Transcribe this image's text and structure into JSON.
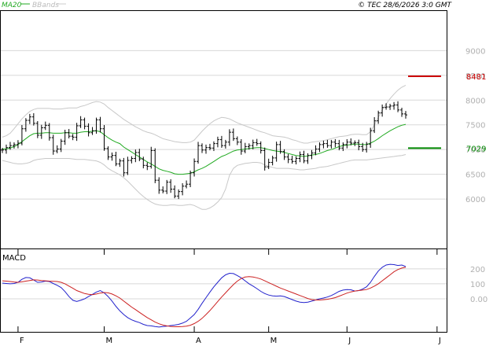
{
  "chart_data": [
    {
      "type": "ohlc",
      "legend": [
        {
          "label": "MA20",
          "color": "#22aa22"
        },
        {
          "label": "BBands",
          "color": "#c0c0c0"
        }
      ],
      "copyright": "© TEC 28/6/2026 3:0 GMT",
      "ylim": [
        5000,
        9800
      ],
      "y_ticks": [
        {
          "label": "9000",
          "value": 9000
        },
        {
          "label": "8500",
          "value": 8500
        },
        {
          "label": "8000",
          "value": 8000
        },
        {
          "label": "7500",
          "value": 7500
        },
        {
          "label": "7000",
          "value": 7000
        },
        {
          "label": "6500",
          "value": 6500
        },
        {
          "label": "6000",
          "value": 6000
        }
      ],
      "x_ticks": [
        {
          "label": "F",
          "index": 4
        },
        {
          "label": "M",
          "index": 26
        },
        {
          "label": "A",
          "index": 49
        },
        {
          "label": "M",
          "index": 68
        },
        {
          "label": "J",
          "index": 88
        },
        {
          "label": "J",
          "index": 111
        }
      ],
      "markers": [
        {
          "label": "8481",
          "value": 8481,
          "color": "#cc0000"
        },
        {
          "label": "7029",
          "value": 7029,
          "color": "#008800"
        }
      ],
      "closes": [
        6990,
        7040,
        7080,
        7100,
        7130,
        7420,
        7590,
        7660,
        7530,
        7290,
        7440,
        7490,
        7240,
        6970,
        7010,
        7170,
        7340,
        7270,
        7250,
        7480,
        7600,
        7470,
        7340,
        7380,
        7600,
        7420,
        7020,
        6850,
        6880,
        6710,
        6770,
        6530,
        6780,
        6820,
        6940,
        6810,
        6680,
        6660,
        6980,
        6380,
        6180,
        6160,
        6340,
        6200,
        6060,
        6150,
        6260,
        6300,
        6530,
        6760,
        7080,
        6990,
        7040,
        7030,
        7120,
        7200,
        7080,
        7150,
        7350,
        7220,
        7150,
        6970,
        7060,
        7080,
        7140,
        7120,
        6980,
        6650,
        6740,
        6830,
        7100,
        6960,
        6850,
        6800,
        6760,
        6820,
        6900,
        6770,
        6880,
        6930,
        7010,
        7100,
        7120,
        7080,
        7150,
        7120,
        7030,
        7100,
        7150,
        7130,
        7140,
        7060,
        7000,
        7110,
        7380,
        7580,
        7740,
        7850,
        7860,
        7880,
        7900,
        7800,
        7720,
        7700
      ],
      "ma20": [
        7010,
        7015,
        7030,
        7060,
        7100,
        7160,
        7220,
        7280,
        7320,
        7330,
        7330,
        7340,
        7340,
        7330,
        7330,
        7330,
        7340,
        7340,
        7330,
        7330,
        7350,
        7360,
        7360,
        7370,
        7380,
        7360,
        7300,
        7240,
        7190,
        7150,
        7120,
        7050,
        7000,
        6950,
        6900,
        6850,
        6800,
        6750,
        6710,
        6660,
        6610,
        6580,
        6560,
        6540,
        6510,
        6500,
        6500,
        6510,
        6520,
        6550,
        6590,
        6620,
        6660,
        6710,
        6760,
        6810,
        6860,
        6890,
        6930,
        6970,
        6990,
        7000,
        7010,
        7020,
        7030,
        7040,
        7040,
        7020,
        7000,
        6980,
        6970,
        6960,
        6940,
        6920,
        6900,
        6880,
        6870,
        6860,
        6870,
        6890,
        6900,
        6920,
        6950,
        6980,
        7000,
        7030,
        7060,
        7080,
        7090,
        7100,
        7110,
        7110,
        7100,
        7100,
        7130,
        7170,
        7220,
        7280,
        7330,
        7380,
        7420,
        7460,
        7490,
        7510
      ],
      "bb_upper": [
        7250,
        7280,
        7330,
        7420,
        7520,
        7620,
        7700,
        7770,
        7810,
        7830,
        7830,
        7830,
        7830,
        7820,
        7820,
        7820,
        7830,
        7840,
        7840,
        7840,
        7870,
        7890,
        7920,
        7950,
        7970,
        7960,
        7920,
        7850,
        7790,
        7730,
        7670,
        7610,
        7560,
        7510,
        7460,
        7420,
        7380,
        7350,
        7330,
        7300,
        7260,
        7220,
        7200,
        7180,
        7160,
        7150,
        7140,
        7140,
        7150,
        7190,
        7280,
        7370,
        7450,
        7520,
        7580,
        7620,
        7650,
        7640,
        7620,
        7580,
        7540,
        7510,
        7480,
        7450,
        7420,
        7390,
        7360,
        7340,
        7310,
        7280,
        7270,
        7260,
        7250,
        7230,
        7200,
        7180,
        7150,
        7130,
        7130,
        7150,
        7160,
        7170,
        7180,
        7200,
        7220,
        7240,
        7260,
        7270,
        7280,
        7300,
        7310,
        7310,
        7300,
        7300,
        7360,
        7500,
        7650,
        7800,
        7920,
        8030,
        8120,
        8200,
        8260,
        8300
      ],
      "bb_lower": [
        6780,
        6760,
        6740,
        6720,
        6710,
        6710,
        6720,
        6740,
        6780,
        6800,
        6810,
        6820,
        6820,
        6820,
        6820,
        6820,
        6820,
        6820,
        6810,
        6800,
        6800,
        6800,
        6790,
        6780,
        6770,
        6740,
        6690,
        6620,
        6570,
        6530,
        6490,
        6430,
        6360,
        6280,
        6200,
        6120,
        6050,
        5990,
        5940,
        5900,
        5880,
        5870,
        5870,
        5880,
        5880,
        5870,
        5870,
        5880,
        5890,
        5870,
        5830,
        5790,
        5790,
        5820,
        5870,
        5940,
        6030,
        6200,
        6480,
        6620,
        6680,
        6700,
        6720,
        6730,
        6740,
        6740,
        6730,
        6690,
        6660,
        6640,
        6620,
        6620,
        6620,
        6620,
        6610,
        6600,
        6590,
        6590,
        6600,
        6610,
        6620,
        6640,
        6650,
        6660,
        6680,
        6700,
        6720,
        6740,
        6760,
        6780,
        6790,
        6790,
        6790,
        6790,
        6800,
        6810,
        6820,
        6830,
        6840,
        6850,
        6860,
        6870,
        6880,
        6900
      ]
    },
    {
      "type": "line",
      "title": "MACD",
      "ylim": [
        -220,
        330
      ],
      "y_ticks": [
        {
          "label": "200",
          "value": 200
        },
        {
          "label": "100",
          "value": 100
        },
        {
          "label": "0.00",
          "value": 0
        }
      ],
      "series": [
        {
          "color": "#2222cc",
          "values": [
            105,
            102,
            100,
            102,
            110,
            130,
            142,
            140,
            125,
            110,
            112,
            118,
            115,
            102,
            90,
            75,
            48,
            15,
            -10,
            -18,
            -10,
            0,
            15,
            30,
            45,
            55,
            40,
            15,
            -15,
            -50,
            -80,
            -105,
            -125,
            -140,
            -150,
            -158,
            -170,
            -178,
            -180,
            -185,
            -188,
            -185,
            -182,
            -178,
            -175,
            -170,
            -162,
            -150,
            -128,
            -105,
            -70,
            -30,
            8,
            45,
            80,
            110,
            140,
            160,
            170,
            168,
            155,
            140,
            120,
            100,
            85,
            68,
            50,
            35,
            25,
            20,
            18,
            20,
            15,
            5,
            -5,
            -15,
            -22,
            -25,
            -22,
            -15,
            -8,
            0,
            5,
            12,
            22,
            35,
            50,
            58,
            62,
            60,
            52,
            55,
            65,
            80,
            110,
            150,
            185,
            210,
            225,
            230,
            228,
            222,
            225,
            215
          ]
        },
        {
          "color": "#cc2222",
          "values": [
            120,
            118,
            115,
            112,
            110,
            113,
            118,
            122,
            126,
            125,
            122,
            120,
            118,
            117,
            115,
            110,
            100,
            85,
            70,
            55,
            45,
            35,
            30,
            28,
            32,
            38,
            42,
            40,
            32,
            20,
            5,
            -15,
            -35,
            -55,
            -72,
            -90,
            -108,
            -125,
            -140,
            -155,
            -166,
            -175,
            -180,
            -184,
            -186,
            -186,
            -185,
            -182,
            -176,
            -165,
            -150,
            -130,
            -105,
            -78,
            -48,
            -18,
            12,
            40,
            68,
            95,
            118,
            135,
            145,
            148,
            145,
            140,
            132,
            120,
            108,
            96,
            84,
            72,
            62,
            52,
            42,
            32,
            22,
            12,
            2,
            -5,
            -8,
            -8,
            -6,
            -3,
            2,
            8,
            18,
            28,
            38,
            46,
            52,
            55,
            58,
            62,
            72,
            85,
            100,
            120,
            140,
            160,
            180,
            195,
            205,
            210
          ]
        }
      ]
    }
  ]
}
